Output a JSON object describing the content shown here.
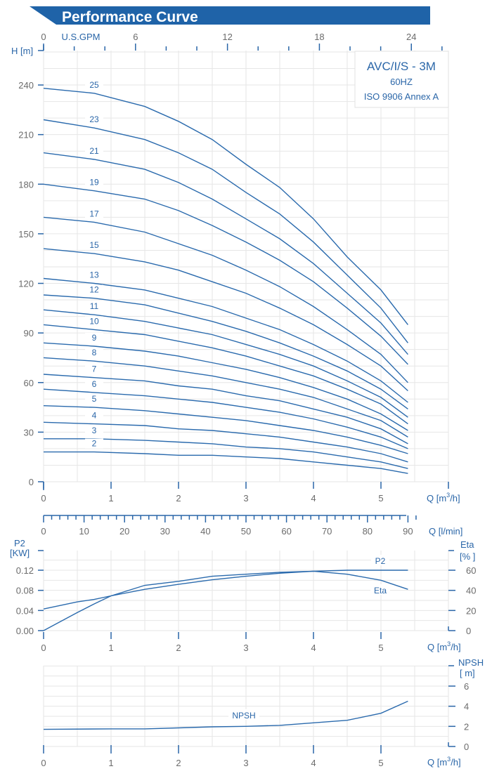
{
  "header": {
    "title": "Performance Curve",
    "banner_color": "#1f63a8"
  },
  "colors": {
    "accent": "#2a66a8",
    "curve": "#2a6aad",
    "grid": "#e6e6e6",
    "tick_text": "#6b6b6b"
  },
  "infobox": {
    "model": "AVC/I/S - 3M",
    "frequency": "60HZ",
    "standard": "ISO 9906 Annex A"
  },
  "chart_data": [
    {
      "id": "head",
      "type": "line",
      "title": "Performance Curve",
      "xlabel": "Q [m³/h]",
      "ylabel": "H [m]",
      "xlim": [
        0,
        6
      ],
      "ylim": [
        0,
        250
      ],
      "x_ticks": [
        0,
        1,
        2,
        3,
        4,
        5
      ],
      "y_ticks": [
        0,
        30,
        60,
        90,
        120,
        150,
        180,
        210,
        240
      ],
      "secondary_x_axis_top": {
        "label": "U.S.GPM",
        "ticks": [
          0,
          6,
          12,
          18,
          24
        ]
      },
      "secondary_x_axis_bottom": {
        "label": "Q [l/min]",
        "ticks": [
          0,
          10,
          20,
          30,
          40,
          50,
          60,
          70,
          80,
          90
        ]
      },
      "grid": true,
      "x": [
        0,
        0.75,
        1.5,
        2,
        2.5,
        3,
        3.5,
        4,
        4.5,
        5,
        5.4
      ],
      "series": [
        {
          "name": "25",
          "values": [
            238,
            235,
            227,
            218,
            207,
            192,
            178,
            159,
            136,
            116,
            95
          ]
        },
        {
          "name": "23",
          "values": [
            219,
            214,
            207,
            199,
            189,
            175,
            162,
            145,
            125,
            105,
            84
          ]
        },
        {
          "name": "21",
          "values": [
            199,
            195,
            189,
            181,
            171,
            159,
            147,
            132,
            114,
            96,
            77
          ]
        },
        {
          "name": "19",
          "values": [
            180,
            176,
            171,
            164,
            155,
            145,
            134,
            121,
            105,
            88,
            71
          ]
        },
        {
          "name": "17",
          "values": [
            160,
            157,
            151,
            144,
            137,
            128,
            118,
            106,
            92,
            77,
            60
          ]
        },
        {
          "name": "15",
          "values": [
            141,
            138,
            133,
            128,
            121,
            114,
            105,
            95,
            83,
            70,
            55
          ]
        },
        {
          "name": "13",
          "values": [
            123,
            120,
            116,
            111,
            106,
            99,
            92,
            83,
            73,
            61,
            48
          ]
        },
        {
          "name": "12",
          "values": [
            113,
            111,
            107,
            102,
            97,
            91,
            84,
            76,
            67,
            56,
            44
          ]
        },
        {
          "name": "11",
          "values": [
            104,
            101,
            97,
            93,
            89,
            83,
            77,
            70,
            61,
            51,
            39
          ]
        },
        {
          "name": "10",
          "values": [
            95,
            92,
            89,
            85,
            81,
            76,
            70,
            64,
            56,
            47,
            35
          ]
        },
        {
          "name": "9",
          "values": [
            84,
            82,
            79,
            76,
            72,
            68,
            63,
            57,
            50,
            41,
            31
          ]
        },
        {
          "name": "8",
          "values": [
            75,
            73,
            70,
            67,
            64,
            60,
            56,
            51,
            44,
            37,
            27
          ]
        },
        {
          "name": "7",
          "values": [
            65,
            63,
            61,
            58,
            56,
            52,
            49,
            44,
            39,
            32,
            23
          ]
        },
        {
          "name": "6",
          "values": [
            56,
            54,
            52,
            50,
            48,
            45,
            42,
            38,
            33,
            27,
            20
          ]
        },
        {
          "name": "5",
          "values": [
            46,
            45,
            43,
            41,
            39,
            37,
            34,
            31,
            27,
            22,
            17
          ]
        },
        {
          "name": "4",
          "values": [
            36,
            35,
            34,
            32,
            31,
            29,
            27,
            24,
            21,
            17,
            12
          ]
        },
        {
          "name": "3",
          "values": [
            26,
            26,
            25,
            24,
            23,
            21,
            20,
            18,
            15,
            12,
            8
          ]
        },
        {
          "name": "2",
          "values": [
            18,
            18,
            17,
            16,
            16,
            15,
            14,
            12,
            10,
            8,
            5
          ]
        }
      ]
    },
    {
      "id": "power_efficiency",
      "type": "line",
      "xlabel": "Q [m³/h]",
      "ylabel": "P2 [KW]",
      "ylabel_right": "Eta [%]",
      "xlim": [
        0,
        6
      ],
      "ylim": [
        0,
        0.14
      ],
      "ylim_right": [
        0,
        70
      ],
      "x_ticks": [
        0,
        1,
        2,
        3,
        4,
        5
      ],
      "y_ticks": [
        "0.00",
        "0.04",
        "0.08",
        "0.12"
      ],
      "y_ticks_right": [
        0,
        20,
        40,
        60
      ],
      "grid": true,
      "x": [
        0,
        0.5,
        0.75,
        1,
        1.5,
        2,
        2.5,
        3,
        3.5,
        4,
        4.5,
        5,
        5.4
      ],
      "series": [
        {
          "name": "P2",
          "axis": "left",
          "values": [
            0.043,
            0.057,
            0.062,
            0.069,
            0.082,
            0.092,
            0.101,
            0.108,
            0.114,
            0.118,
            0.12,
            0.12,
            0.12
          ]
        },
        {
          "name": "Eta",
          "axis": "right",
          "values": [
            0,
            18,
            26.5,
            34.5,
            45,
            49,
            54,
            56,
            58,
            59,
            56,
            50,
            41
          ]
        }
      ]
    },
    {
      "id": "npsh",
      "type": "line",
      "xlabel": "Q [m³/h]",
      "ylabel_right": "NPSH [m]",
      "xlim": [
        0,
        6
      ],
      "ylim": [
        0,
        8
      ],
      "x_ticks": [
        0,
        1,
        2,
        3,
        4,
        5
      ],
      "y_ticks_right": [
        0,
        2,
        4,
        6
      ],
      "grid": true,
      "x": [
        0,
        1,
        1.5,
        2,
        2.5,
        3,
        3.5,
        4,
        4.5,
        5,
        5.4
      ],
      "series": [
        {
          "name": "NPSH",
          "values": [
            1.7,
            1.75,
            1.75,
            1.85,
            1.95,
            2.0,
            2.1,
            2.35,
            2.6,
            3.3,
            4.5
          ]
        }
      ]
    }
  ],
  "labels": {
    "h_axis": "H [m]",
    "gpm_axis": "U.S.GPM",
    "q_m3h": "Q [m",
    "q_m3h_sup": "3",
    "q_m3h_end": "/h]",
    "q_lmin": "Q [l/min]",
    "p2_axis_line1": "P2",
    "p2_axis_line2": "[KW]",
    "eta_axis_line1": "Eta",
    "eta_axis_line2": "[% ]",
    "npsh_axis_line1": "NPSH",
    "npsh_axis_line2": "[ m]",
    "p2_curve": "P2",
    "eta_curve": "Eta",
    "npsh_curve": "NPSH"
  }
}
